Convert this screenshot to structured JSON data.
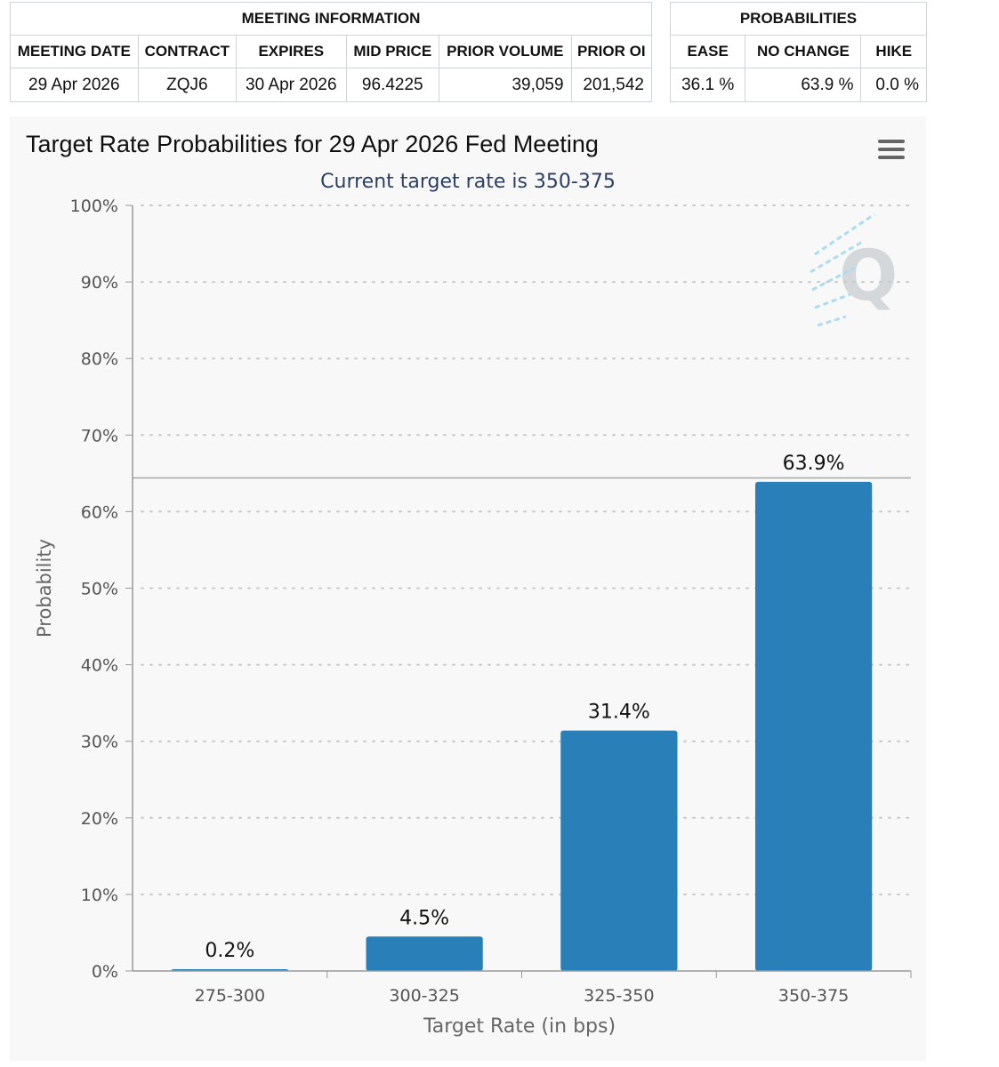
{
  "meeting_info": {
    "header": "MEETING INFORMATION",
    "columns": [
      "MEETING DATE",
      "CONTRACT",
      "EXPIRES",
      "MID PRICE",
      "PRIOR VOLUME",
      "PRIOR OI"
    ],
    "row": [
      "29 Apr 2026",
      "ZQJ6",
      "30 Apr 2026",
      "96.4225",
      "39,059",
      "201,542"
    ]
  },
  "probabilities": {
    "header": "PROBABILITIES",
    "columns": [
      "EASE",
      "NO CHANGE",
      "HIKE"
    ],
    "row": [
      "36.1 %",
      "63.9 %",
      "0.0 %"
    ]
  },
  "chart_data": {
    "type": "bar",
    "title": "Target Rate Probabilities for 29 Apr 2026 Fed Meeting",
    "subtitle": "Current target rate is 350-375",
    "xlabel": "Target Rate (in bps)",
    "ylabel": "Probability",
    "categories": [
      "275-300",
      "300-325",
      "325-350",
      "350-375"
    ],
    "values": [
      0.2,
      4.5,
      31.4,
      63.9
    ],
    "data_labels": [
      "0.2%",
      "4.5%",
      "31.4%",
      "63.9%"
    ],
    "ylim": [
      0,
      100
    ],
    "yticks": [
      "0%",
      "10%",
      "20%",
      "30%",
      "40%",
      "50%",
      "60%",
      "70%",
      "80%",
      "90%",
      "100%"
    ],
    "grid": "dotted horizontal",
    "bar_color": "#2980b9",
    "reference_line": 64.4
  },
  "colors": {
    "bar": "#2980b9",
    "subtitle": "#2b3f63",
    "panel_bg": "#f8f8f8"
  }
}
